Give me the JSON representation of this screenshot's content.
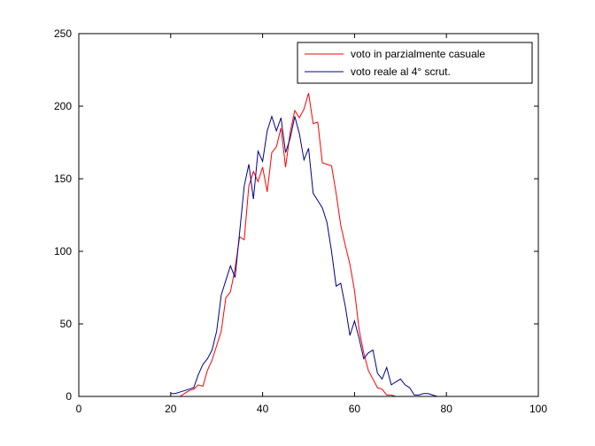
{
  "chart_data": {
    "type": "line",
    "title": "",
    "xlabel": "",
    "ylabel": "",
    "xlim": [
      0,
      100
    ],
    "ylim": [
      0,
      250
    ],
    "xticks": [
      0,
      20,
      40,
      60,
      80,
      100
    ],
    "yticks": [
      0,
      50,
      100,
      150,
      200,
      250
    ],
    "grid": false,
    "legend": "top-right",
    "series": [
      {
        "name": "voto in parzialmente casuale",
        "color": "#ff0000",
        "x": [
          20,
          21,
          22,
          23,
          24,
          25,
          26,
          27,
          28,
          29,
          30,
          31,
          32,
          33,
          34,
          35,
          36,
          37,
          38,
          39,
          40,
          41,
          42,
          43,
          44,
          45,
          46,
          47,
          48,
          49,
          50,
          51,
          52,
          53,
          54,
          55,
          56,
          57,
          58,
          59,
          60,
          61,
          62,
          63,
          64,
          65,
          66,
          67,
          68,
          69,
          70
        ],
        "y": [
          0,
          0,
          0,
          2,
          4,
          5,
          8,
          7,
          18,
          25,
          35,
          45,
          68,
          72,
          88,
          110,
          108,
          145,
          155,
          148,
          158,
          141,
          168,
          172,
          185,
          158,
          182,
          197,
          192,
          198,
          209,
          188,
          189,
          161,
          160,
          159,
          140,
          118,
          104,
          91,
          73,
          46,
          30,
          18,
          12,
          6,
          5,
          1,
          1,
          0,
          0
        ]
      },
      {
        "name": "voto reale al 4° scrut.",
        "color": "#00008b",
        "x": [
          20,
          21,
          22,
          23,
          24,
          25,
          26,
          27,
          28,
          29,
          30,
          31,
          32,
          33,
          34,
          35,
          36,
          37,
          38,
          39,
          40,
          41,
          42,
          43,
          44,
          45,
          46,
          47,
          48,
          49,
          50,
          51,
          52,
          53,
          54,
          55,
          56,
          57,
          58,
          59,
          60,
          61,
          62,
          63,
          64,
          65,
          66,
          67,
          68,
          69,
          70,
          71,
          72,
          73,
          74,
          75,
          76,
          77,
          78,
          79
        ],
        "y": [
          2,
          2,
          3,
          4,
          5,
          6,
          15,
          22,
          26,
          32,
          45,
          70,
          80,
          90,
          82,
          113,
          145,
          160,
          136,
          169,
          162,
          183,
          193,
          183,
          192,
          168,
          178,
          193,
          181,
          163,
          171,
          140,
          135,
          130,
          120,
          100,
          76,
          78,
          62,
          42,
          52,
          40,
          26,
          30,
          32,
          16,
          12,
          20,
          8,
          10,
          12,
          8,
          6,
          1,
          1,
          2,
          2,
          1,
          0,
          0
        ]
      }
    ]
  }
}
